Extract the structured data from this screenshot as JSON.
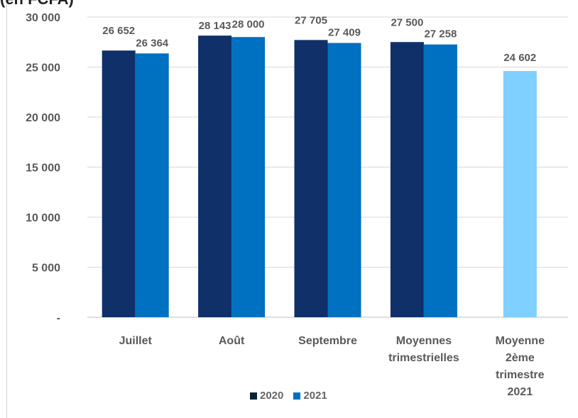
{
  "header": {
    "top_text": "(en FCFA)"
  },
  "chart_data": {
    "type": "bar",
    "categories": [
      [
        "Juillet"
      ],
      [
        "Août"
      ],
      [
        "Septembre"
      ],
      [
        "Moyennes",
        "trimestrielles"
      ],
      [
        "Moyenne",
        "2ème",
        "trimestre",
        "2021"
      ]
    ],
    "series": [
      {
        "name": "2020",
        "color": "#0f3068",
        "values": [
          26652,
          28143,
          27705,
          27500,
          null
        ],
        "labels": [
          "26 652",
          "28 143",
          "27 705",
          "27 500",
          ""
        ]
      },
      {
        "name": "2021",
        "color": "#0070c0",
        "values": [
          26364,
          28000,
          27409,
          27258,
          24602
        ],
        "labels": [
          "26 364",
          "28 000",
          "27 409",
          "27 258",
          "24 602"
        ]
      }
    ],
    "special_bar_color": "#7fcfff",
    "ylim": [
      0,
      30000
    ],
    "y_ticks": [
      {
        "value": 0,
        "label": "-"
      },
      {
        "value": 5000,
        "label": "5 000"
      },
      {
        "value": 10000,
        "label": "10 000"
      },
      {
        "value": 15000,
        "label": "15 000"
      },
      {
        "value": 20000,
        "label": "20 000"
      },
      {
        "value": 25000,
        "label": "25 000"
      },
      {
        "value": 30000,
        "label": "30 000"
      }
    ],
    "grid": true,
    "legend": {
      "position": "bottom",
      "entries": [
        "2020",
        "2021"
      ],
      "colors": [
        "#0d2136",
        "#0070c0"
      ]
    },
    "title": "",
    "xlabel": "",
    "ylabel": ""
  }
}
